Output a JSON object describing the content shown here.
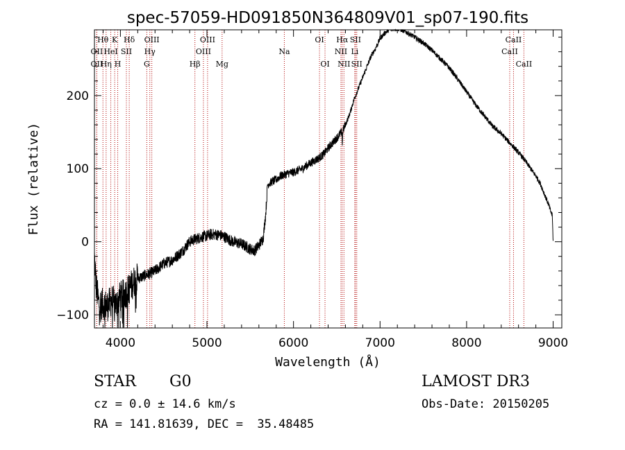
{
  "chart_data": {
    "type": "line",
    "title": "spec-57059-HD091850N364809V01_sp07-190.fits",
    "xlabel": "Wavelength (Å)",
    "ylabel": "Flux (relative)",
    "xlim": [
      3700,
      9100
    ],
    "ylim": [
      -118,
      290
    ],
    "xticks": [
      4000,
      5000,
      6000,
      7000,
      8000,
      9000
    ],
    "yticks": [
      -100,
      0,
      100,
      200
    ],
    "series": [
      {
        "name": "flux",
        "x": [
          3700,
          3720,
          3750,
          3800,
          3850,
          3900,
          3950,
          4000,
          4050,
          4100,
          4150,
          4200,
          4250,
          4300,
          4350,
          4400,
          4500,
          4600,
          4700,
          4800,
          4850,
          4900,
          4950,
          5000,
          5050,
          5100,
          5150,
          5200,
          5300,
          5400,
          5500,
          5550,
          5600,
          5650,
          5680,
          5700,
          5720,
          5750,
          5800,
          5850,
          5900,
          5950,
          6000,
          6100,
          6200,
          6300,
          6350,
          6400,
          6450,
          6500,
          6540,
          6560,
          6563,
          6570,
          6600,
          6650,
          6700,
          6750,
          6800,
          6850,
          6900,
          6950,
          7000,
          7050,
          7100,
          7150,
          7200,
          7250,
          7300,
          7400,
          7500,
          7600,
          7700,
          7800,
          7900,
          8000,
          8100,
          8200,
          8300,
          8400,
          8500,
          8540,
          8600,
          8650,
          8700,
          8800,
          8850,
          8900,
          8950,
          8970,
          8990,
          9000
        ],
        "y": [
          -20,
          -60,
          -85,
          -85,
          -88,
          -80,
          -85,
          -75,
          -72,
          -65,
          -55,
          -50,
          -48,
          -45,
          -43,
          -40,
          -30,
          -25,
          -15,
          0,
          3,
          5,
          7,
          8,
          10,
          10,
          9,
          7,
          0,
          -3,
          -10,
          -12,
          -5,
          5,
          40,
          78,
          80,
          82,
          85,
          90,
          92,
          94,
          95,
          100,
          108,
          115,
          120,
          128,
          135,
          142,
          148,
          150,
          130,
          152,
          160,
          175,
          195,
          210,
          225,
          240,
          255,
          265,
          278,
          285,
          290,
          292,
          292,
          290,
          287,
          280,
          272,
          262,
          250,
          238,
          222,
          205,
          188,
          173,
          158,
          148,
          135,
          130,
          122,
          115,
          107,
          90,
          80,
          65,
          50,
          42,
          36,
          0
        ]
      }
    ],
    "lines": [
      {
        "name": "Hθ",
        "w": 3798,
        "label_row": 1
      },
      {
        "name": "OII",
        "w": 3727,
        "label_row": 2
      },
      {
        "name": "OII",
        "w": 3727,
        "label_row": 3
      },
      {
        "name": "K",
        "w": 3934,
        "label_row": 1
      },
      {
        "name": "Hη",
        "w": 3835,
        "label_row": 3
      },
      {
        "name": "HeI",
        "w": 3889,
        "label_row": 2
      },
      {
        "name": "H",
        "w": 3969,
        "label_row": 3
      },
      {
        "name": "SII",
        "w": 4069,
        "label_row": 2
      },
      {
        "name": "Hδ",
        "w": 4102,
        "label_row": 1
      },
      {
        "name": "OIII",
        "w": 4363,
        "label_row": 1
      },
      {
        "name": "Hγ",
        "w": 4340,
        "label_row": 2
      },
      {
        "name": "G",
        "w": 4305,
        "label_row": 3
      },
      {
        "name": "Hβ",
        "w": 4861,
        "label_row": 3
      },
      {
        "name": "OIII",
        "w": 5007,
        "label_row": 1
      },
      {
        "name": "OIII",
        "w": 4959,
        "label_row": 2
      },
      {
        "name": "Mg",
        "w": 5175,
        "label_row": 3
      },
      {
        "name": "Na",
        "w": 5894,
        "label_row": 2
      },
      {
        "name": "OI",
        "w": 6300,
        "label_row": 1
      },
      {
        "name": "OI",
        "w": 6364,
        "label_row": 3
      },
      {
        "name": "Hα",
        "w": 6563,
        "label_row": 1
      },
      {
        "name": "NII",
        "w": 6548,
        "label_row": 2
      },
      {
        "name": "NII",
        "w": 6583,
        "label_row": 3
      },
      {
        "name": "SII",
        "w": 6716,
        "label_row": 1
      },
      {
        "name": "Li",
        "w": 6708,
        "label_row": 2
      },
      {
        "name": "SII",
        "w": 6731,
        "label_row": 3
      },
      {
        "name": "CaII",
        "w": 8542,
        "label_row": 1
      },
      {
        "name": "CaII",
        "w": 8498,
        "label_row": 2
      },
      {
        "name": "CaII",
        "w": 8662,
        "label_row": 3
      }
    ]
  },
  "info": {
    "object_class": "STAR",
    "subclass": "G0",
    "survey": "LAMOST DR3",
    "redshift": "cz = 0.0 ± 14.6 km/s",
    "obs_date": "Obs-Date: 20150205",
    "coords": "RA = 141.81639, DEC =  35.48485"
  },
  "colors": {
    "spectrum": "#000000",
    "line_marker": "#b00000"
  }
}
